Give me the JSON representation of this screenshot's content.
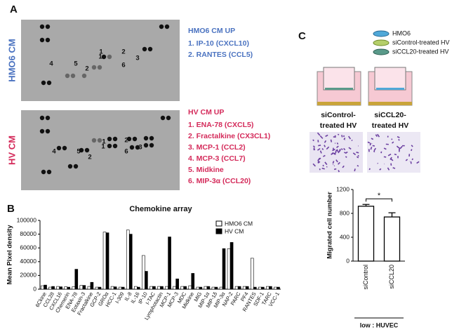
{
  "panels": {
    "a": "A",
    "b": "B",
    "c": "C"
  },
  "panel_a": {
    "hmo6_side": "HMO6 CM",
    "hv_side": "HV CM",
    "hmo6_spots": {
      "red": [
        "1",
        "2",
        "3",
        "4",
        "5",
        "6"
      ],
      "blue": [
        "2",
        "1"
      ]
    },
    "hv_spots": {
      "red": [
        "1",
        "2",
        "3",
        "4",
        "5",
        "6"
      ],
      "blue": [
        "1",
        "2"
      ]
    },
    "hmo6_heading": "HMO6 CM UP",
    "hmo6_items": [
      "1.   IP-10 (CXCL10)",
      "2.   RANTES (CCL5)"
    ],
    "hv_heading": "HV CM UP",
    "hv_items": [
      "1.   ENA-78 (CXCL5)",
      "2.   Fractalkine (CX3CL1)",
      "3.   MCP-1 (CCL2)",
      "4.   MCP-3 (CCL7)",
      "5.   Midkine",
      "6.   MIP-3α (CCL20)"
    ]
  },
  "panel_c": {
    "legend": [
      "HMO6",
      "siControl-treated HV",
      "siCCL20-treated HV"
    ],
    "captions": [
      [
        "siControl-",
        "treated HV"
      ],
      [
        "siCCL20-",
        "treated HV"
      ]
    ]
  },
  "chart_data": [
    {
      "type": "bar",
      "title": "Chemokine array",
      "ylabel": "Mean Pixel density",
      "categories": [
        "6Ckine",
        "CCL28",
        "CXCL16",
        "Chemerin",
        "ENA-78",
        "Eotaxin-3",
        "Fractalkine",
        "GCP-2",
        "GROα",
        "HCC-1",
        "I-309",
        "IL-8",
        "IL-16",
        "IP-10",
        "I-TAC",
        "Lymphotactin",
        "MCP-1",
        "MCP-3",
        "MDC",
        "Midkine",
        "MIG",
        "MIP-1α",
        "MIP-1δ",
        "MIP-3α",
        "NAP-2",
        "PARC",
        "PF4",
        "RANTES",
        "SDF-1",
        "TARC",
        "VCC-1"
      ],
      "series": [
        {
          "name": "HMO6 CM",
          "color": "#ffffff",
          "values": [
            5000,
            3000,
            4000,
            3500,
            3500,
            5500,
            4000,
            3000,
            83000,
            4000,
            3000,
            86000,
            4000,
            49000,
            4000,
            4000,
            4000,
            4000,
            4000,
            5000,
            3000,
            4000,
            3000,
            3000,
            59000,
            4000,
            4000,
            45000,
            3000,
            4000,
            3000
          ]
        },
        {
          "name": "HV CM",
          "color": "#000000",
          "values": [
            6000,
            4000,
            3500,
            3000,
            29000,
            5500,
            10000,
            3000,
            82000,
            3500,
            3000,
            80000,
            3000,
            26000,
            4000,
            4000,
            76000,
            15000,
            4000,
            23000,
            3000,
            4000,
            3000,
            59000,
            68000,
            4000,
            4000,
            3000,
            3000,
            4000,
            3000
          ]
        }
      ],
      "ylim": [
        0,
        100000
      ],
      "yticks": [
        0,
        20000,
        40000,
        60000,
        80000,
        100000
      ],
      "legend": "upper right"
    },
    {
      "type": "errorbar",
      "ylabel": "Migrated cell number",
      "xlabel": "low : HUVEC",
      "categories": [
        "siControl",
        "siCCL20"
      ],
      "values": [
        920,
        740
      ],
      "errors": [
        30,
        70
      ],
      "color": "#ffffff",
      "ylim": [
        0,
        1200
      ],
      "yticks": [
        0,
        400,
        800,
        1200
      ],
      "annotation": "*"
    }
  ]
}
